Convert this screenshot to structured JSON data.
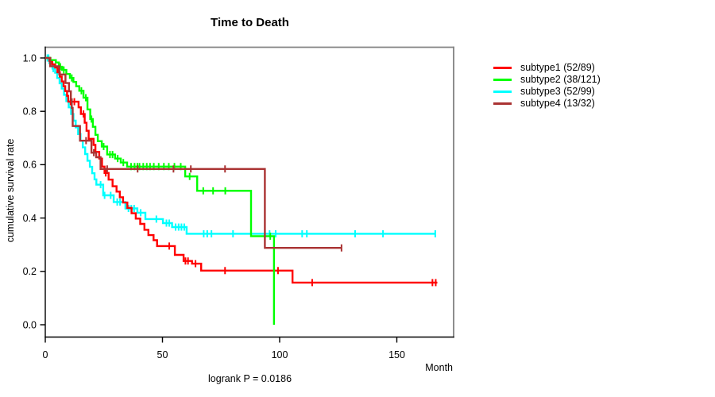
{
  "title": "Time to Death",
  "footer": {
    "logrank_label": "logrank P = 0.0186"
  },
  "axes": {
    "x": {
      "label": "Month",
      "ticks": [
        "0",
        "50",
        "100",
        "150"
      ],
      "tick_values": [
        0,
        50,
        100,
        150
      ]
    },
    "y": {
      "label": "cumulative survival rate",
      "ticks": [
        "0.0",
        "0.2",
        "0.4",
        "0.6",
        "0.8",
        "1.0"
      ],
      "tick_values": [
        0,
        0.2,
        0.4,
        0.6,
        0.8,
        1.0
      ]
    }
  },
  "legend": {
    "items": [
      {
        "label": "subtype1 (52/89)",
        "color": "#ff0000"
      },
      {
        "label": "subtype2 (38/121)",
        "color": "#00ff00"
      },
      {
        "label": "subtype3 (52/99)",
        "color": "#00ffff"
      },
      {
        "label": "subtype4 (13/32)",
        "color": "#aa3333"
      }
    ]
  },
  "chart_data": {
    "type": "line",
    "subtype": "kaplan-meier-step",
    "title": "Time to Death",
    "xlabel": "Month",
    "ylabel": "cumulative survival rate",
    "xlim": [
      0,
      174
    ],
    "ylim": [
      0,
      1.0
    ],
    "x_ticks": [
      0,
      50,
      100,
      150
    ],
    "y_ticks": [
      0,
      0.2,
      0.4,
      0.6,
      0.8,
      1.0
    ],
    "grid": false,
    "legend_position": "right-outside-top",
    "annotation": "logrank P = 0.0186",
    "series": [
      {
        "id": "subtype1",
        "name": "subtype1 (52/89)",
        "events": 52,
        "n": 89,
        "color": "#ff0000",
        "points": [
          [
            0,
            1
          ],
          [
            1.8,
            0.988
          ],
          [
            3,
            0.976
          ],
          [
            4.2,
            0.964
          ],
          [
            5.2,
            0.946
          ],
          [
            6.2,
            0.93
          ],
          [
            7,
            0.912
          ],
          [
            7.8,
            0.894
          ],
          [
            8.5,
            0.876
          ],
          [
            9.3,
            0.858
          ],
          [
            9.8,
            0.836
          ],
          [
            14.2,
            0.815
          ],
          [
            15.2,
            0.79
          ],
          [
            16.8,
            0.757
          ],
          [
            17.6,
            0.727
          ],
          [
            18.5,
            0.697
          ],
          [
            20.6,
            0.674
          ],
          [
            21.4,
            0.648
          ],
          [
            23,
            0.623
          ],
          [
            24.2,
            0.593
          ],
          [
            25.3,
            0.569
          ],
          [
            27,
            0.544
          ],
          [
            28.7,
            0.519
          ],
          [
            30.4,
            0.499
          ],
          [
            31.8,
            0.478
          ],
          [
            33.2,
            0.458
          ],
          [
            35,
            0.438
          ],
          [
            36.8,
            0.418
          ],
          [
            38.6,
            0.398
          ],
          [
            40.5,
            0.378
          ],
          [
            42.3,
            0.356
          ],
          [
            44,
            0.336
          ],
          [
            46.2,
            0.317
          ],
          [
            47.7,
            0.295
          ],
          [
            55.3,
            0.262
          ],
          [
            59,
            0.239
          ],
          [
            62.6,
            0.229
          ],
          [
            66.5,
            0.203
          ],
          [
            105.5,
            0.158
          ],
          [
            167.3,
            0.158
          ]
        ],
        "censors": [
          [
            2.2,
            0.988
          ],
          [
            10.8,
            0.836
          ],
          [
            12.4,
            0.836
          ],
          [
            16.3,
            0.79
          ],
          [
            25.8,
            0.569
          ],
          [
            52.9,
            0.295
          ],
          [
            59.8,
            0.239
          ],
          [
            60.9,
            0.239
          ],
          [
            64.1,
            0.229
          ],
          [
            76.7,
            0.203
          ],
          [
            99.3,
            0.203
          ],
          [
            113.9,
            0.158
          ],
          [
            165.2,
            0.158
          ],
          [
            166.6,
            0.158
          ]
        ]
      },
      {
        "id": "subtype2",
        "name": "subtype2 (38/121)",
        "events": 38,
        "n": 121,
        "color": "#00ff00",
        "points": [
          [
            0,
            1
          ],
          [
            2.2,
            0.992
          ],
          [
            4.5,
            0.983
          ],
          [
            5.8,
            0.967
          ],
          [
            7.2,
            0.955
          ],
          [
            9,
            0.94
          ],
          [
            10.5,
            0.925
          ],
          [
            12,
            0.91
          ],
          [
            13.2,
            0.894
          ],
          [
            14.5,
            0.877
          ],
          [
            16.3,
            0.851
          ],
          [
            18,
            0.807
          ],
          [
            19.2,
            0.771
          ],
          [
            20.3,
            0.742
          ],
          [
            21.4,
            0.712
          ],
          [
            22.4,
            0.688
          ],
          [
            24.1,
            0.668
          ],
          [
            26.4,
            0.638
          ],
          [
            29.8,
            0.623
          ],
          [
            32.2,
            0.608
          ],
          [
            34.9,
            0.593
          ],
          [
            59.7,
            0.556
          ],
          [
            64.8,
            0.502
          ],
          [
            87.8,
            0.332
          ],
          [
            97.6,
            0
          ]
        ],
        "censors": [
          [
            6.4,
            0.967
          ],
          [
            7.9,
            0.955
          ],
          [
            11.3,
            0.925
          ],
          [
            15.4,
            0.877
          ],
          [
            17.3,
            0.851
          ],
          [
            19.7,
            0.771
          ],
          [
            24.9,
            0.668
          ],
          [
            27.6,
            0.638
          ],
          [
            28.7,
            0.638
          ],
          [
            30.9,
            0.623
          ],
          [
            33.3,
            0.608
          ],
          [
            36.6,
            0.593
          ],
          [
            38.1,
            0.593
          ],
          [
            39.3,
            0.593
          ],
          [
            40.2,
            0.593
          ],
          [
            41.8,
            0.593
          ],
          [
            43.3,
            0.593
          ],
          [
            44.7,
            0.593
          ],
          [
            46.3,
            0.593
          ],
          [
            48.4,
            0.593
          ],
          [
            50.6,
            0.593
          ],
          [
            52.7,
            0.593
          ],
          [
            55.1,
            0.593
          ],
          [
            57.8,
            0.593
          ],
          [
            61.6,
            0.556
          ],
          [
            67.4,
            0.502
          ],
          [
            71.6,
            0.502
          ],
          [
            76.8,
            0.502
          ],
          [
            96,
            0.332
          ]
        ]
      },
      {
        "id": "subtype3",
        "name": "subtype3 (52/99)",
        "events": 52,
        "n": 99,
        "color": "#00ffff",
        "points": [
          [
            0,
            1
          ],
          [
            1.8,
            0.98
          ],
          [
            3.1,
            0.96
          ],
          [
            4.2,
            0.945
          ],
          [
            5.1,
            0.925
          ],
          [
            6.1,
            0.905
          ],
          [
            7,
            0.885
          ],
          [
            8,
            0.862
          ],
          [
            9,
            0.838
          ],
          [
            10,
            0.815
          ],
          [
            11,
            0.79
          ],
          [
            12,
            0.765
          ],
          [
            13,
            0.74
          ],
          [
            14,
            0.715
          ],
          [
            15,
            0.69
          ],
          [
            16,
            0.665
          ],
          [
            17,
            0.64
          ],
          [
            18,
            0.615
          ],
          [
            19,
            0.592
          ],
          [
            20,
            0.568
          ],
          [
            21,
            0.545
          ],
          [
            21.8,
            0.525
          ],
          [
            24.7,
            0.485
          ],
          [
            29.2,
            0.46
          ],
          [
            34.2,
            0.436
          ],
          [
            39.3,
            0.42
          ],
          [
            42.7,
            0.396
          ],
          [
            50.2,
            0.381
          ],
          [
            54.1,
            0.366
          ],
          [
            60.3,
            0.341
          ],
          [
            166.4,
            0.341
          ]
        ],
        "censors": [
          [
            0.9,
            1
          ],
          [
            1.4,
            1
          ],
          [
            3.4,
            0.96
          ],
          [
            23.6,
            0.525
          ],
          [
            25.3,
            0.485
          ],
          [
            27.9,
            0.485
          ],
          [
            30.7,
            0.46
          ],
          [
            31.9,
            0.46
          ],
          [
            35.5,
            0.436
          ],
          [
            36.7,
            0.436
          ],
          [
            37.9,
            0.436
          ],
          [
            40.7,
            0.42
          ],
          [
            47.4,
            0.396
          ],
          [
            51.7,
            0.381
          ],
          [
            52.9,
            0.381
          ],
          [
            55.6,
            0.366
          ],
          [
            56.9,
            0.366
          ],
          [
            58.1,
            0.366
          ],
          [
            59.3,
            0.366
          ],
          [
            67.6,
            0.341
          ],
          [
            69.1,
            0.341
          ],
          [
            70.9,
            0.341
          ],
          [
            80.1,
            0.341
          ],
          [
            95.7,
            0.341
          ],
          [
            98.3,
            0.341
          ],
          [
            109.6,
            0.341
          ],
          [
            111.6,
            0.341
          ],
          [
            132.2,
            0.341
          ],
          [
            144.1,
            0.341
          ],
          [
            166.4,
            0.341
          ]
        ]
      },
      {
        "id": "subtype4",
        "name": "subtype4 (13/32)",
        "events": 13,
        "n": 32,
        "color": "#aa3333",
        "points": [
          [
            0,
            1
          ],
          [
            2.1,
            0.969
          ],
          [
            6,
            0.938
          ],
          [
            8.6,
            0.906
          ],
          [
            10.1,
            0.875
          ],
          [
            10.9,
            0.845
          ],
          [
            11.3,
            0.813
          ],
          [
            11.7,
            0.745
          ],
          [
            14.8,
            0.69
          ],
          [
            19.7,
            0.645
          ],
          [
            21.7,
            0.628
          ],
          [
            23.6,
            0.584
          ],
          [
            93.7,
            0.288
          ],
          [
            126.4,
            0.288
          ]
        ],
        "censors": [
          [
            17.4,
            0.69
          ],
          [
            20.7,
            0.645
          ],
          [
            26.4,
            0.584
          ],
          [
            39.4,
            0.584
          ],
          [
            54.7,
            0.584
          ],
          [
            62.1,
            0.584
          ],
          [
            76.7,
            0.584
          ],
          [
            126.4,
            0.288
          ]
        ]
      }
    ]
  }
}
